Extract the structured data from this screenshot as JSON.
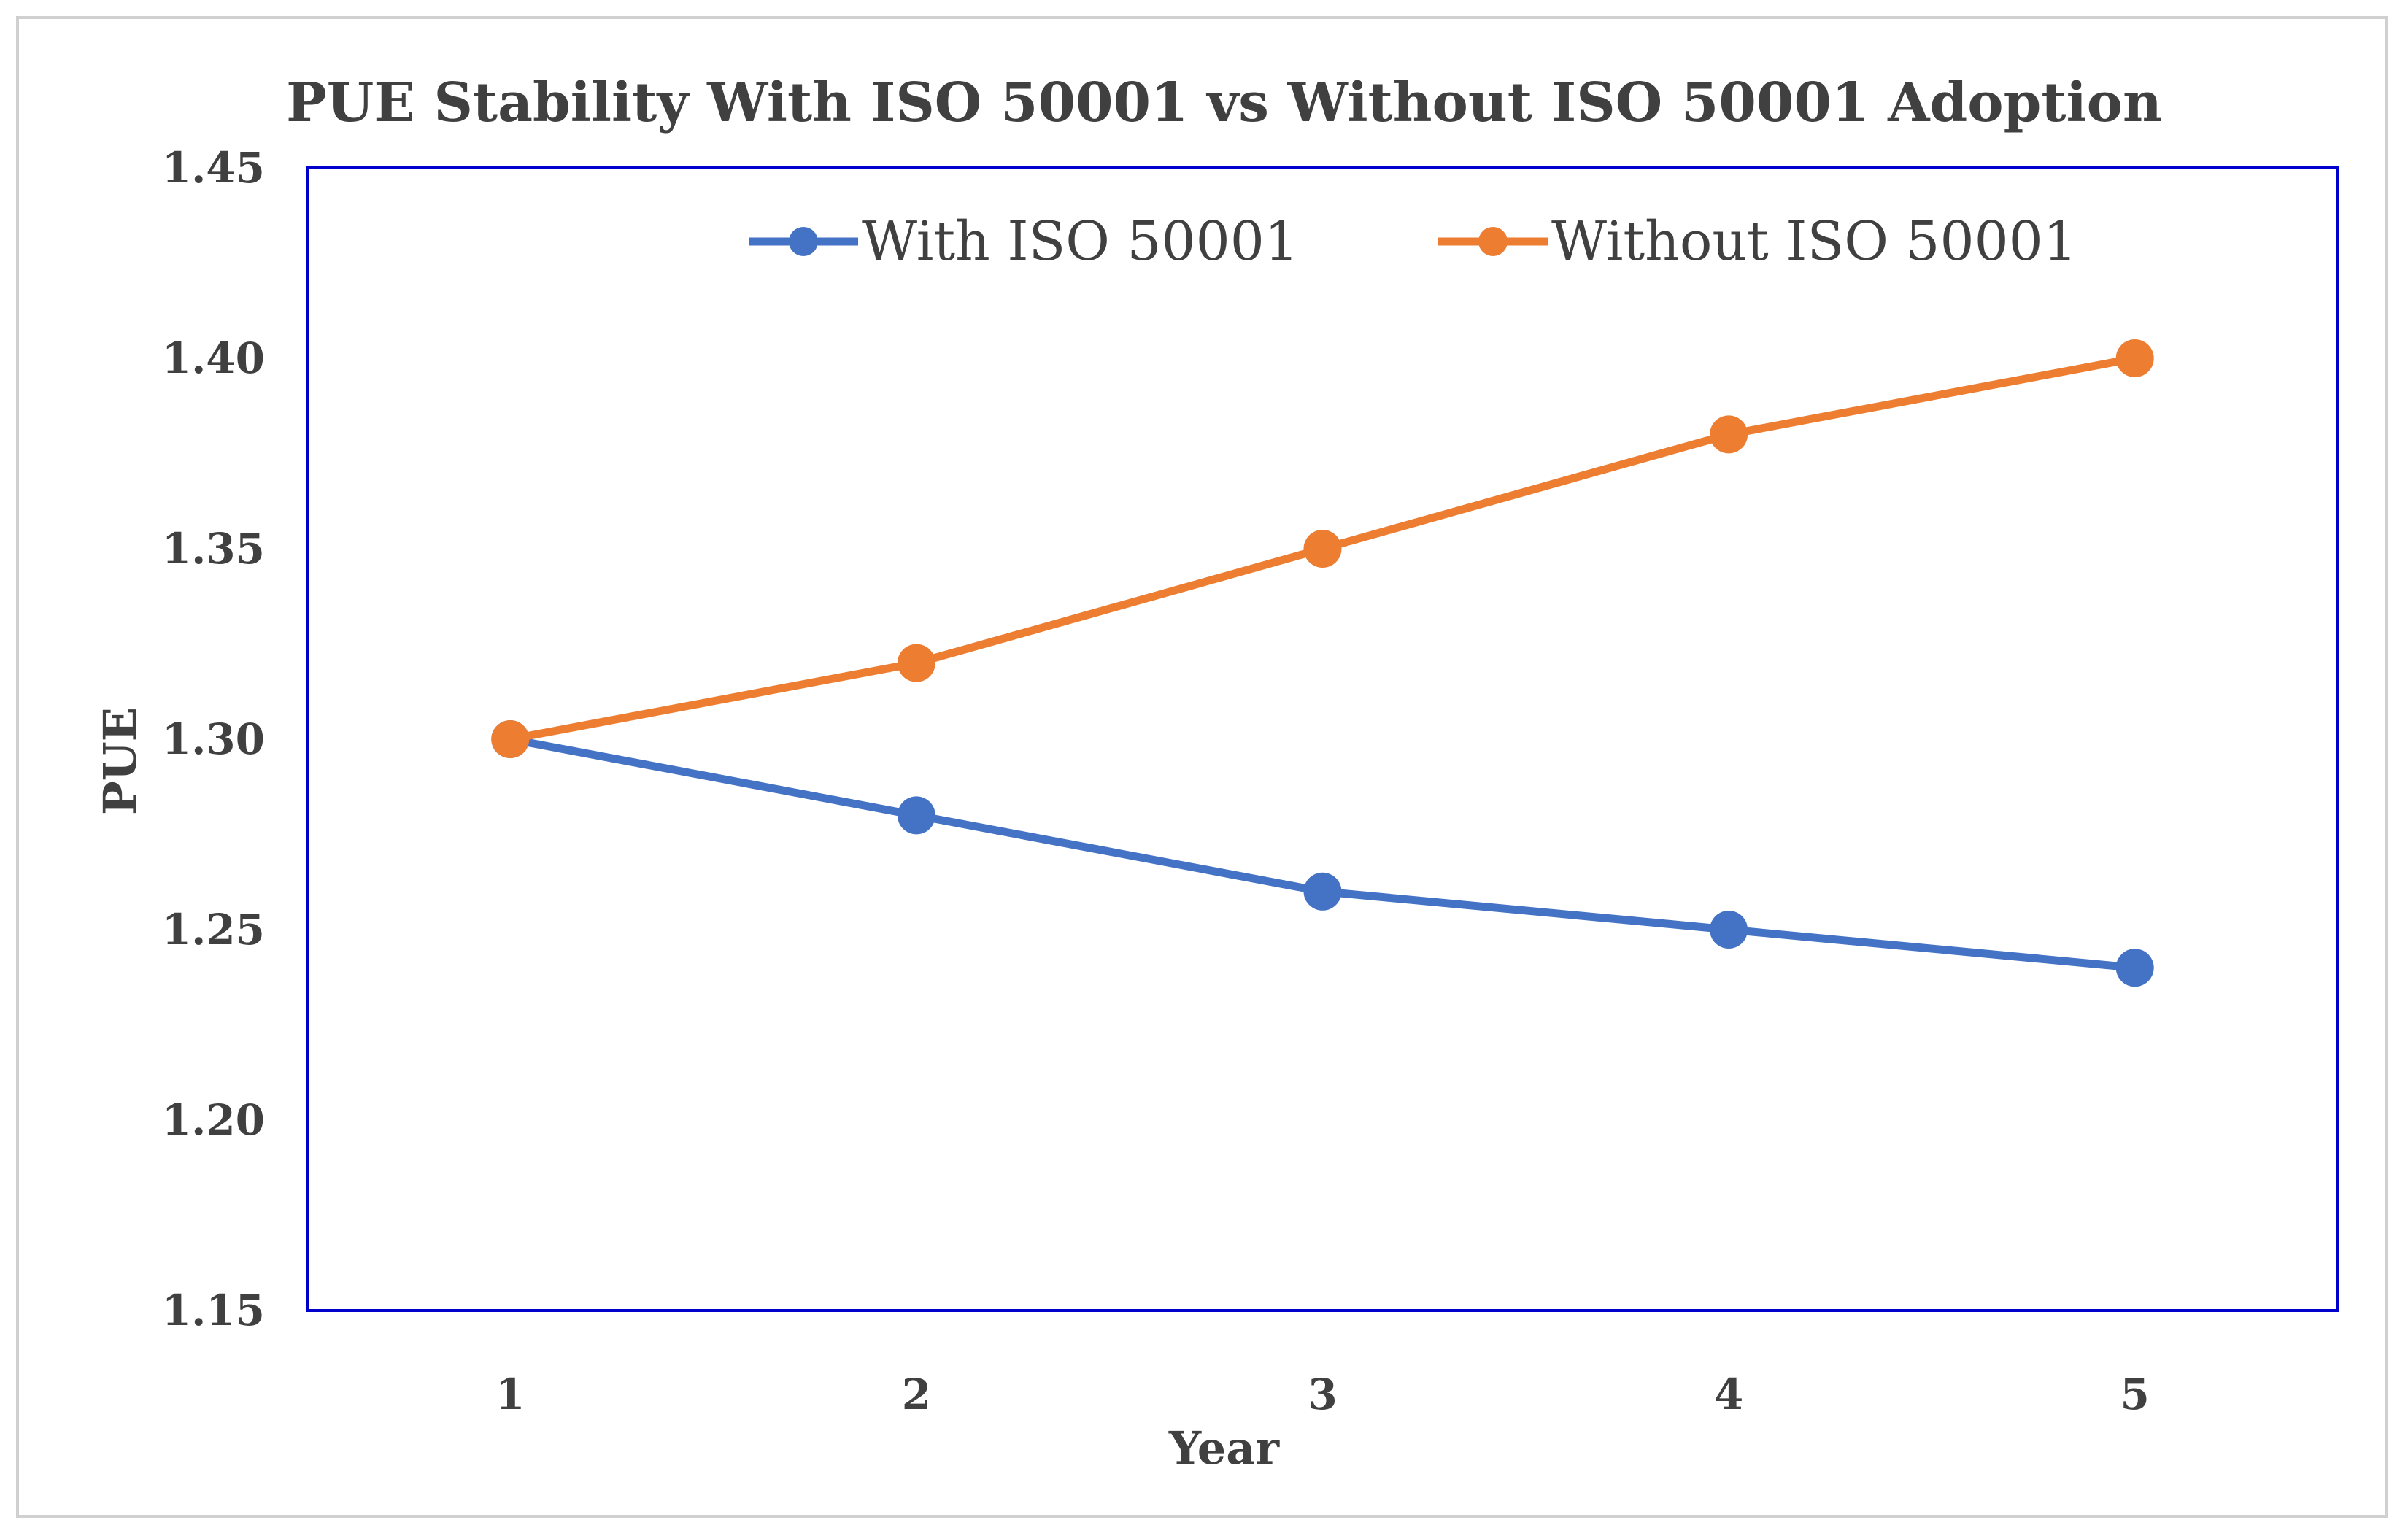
{
  "chart_data": {
    "type": "line",
    "title": "PUE Stability With ISO 50001 vs Without ISO 50001 Adoption",
    "xlabel": "Year",
    "ylabel": "PUE",
    "categories": [
      "1",
      "2",
      "3",
      "4",
      "5"
    ],
    "y_ticks": [
      "1.15",
      "1.20",
      "1.25",
      "1.30",
      "1.35",
      "1.40",
      "1.45"
    ],
    "ylim": [
      1.15,
      1.45
    ],
    "grid": false,
    "legend_position": "top",
    "series": [
      {
        "name": "With ISO 50001",
        "color": "#4472C4",
        "values": [
          1.3,
          1.28,
          1.26,
          1.25,
          1.24
        ]
      },
      {
        "name": "Without ISO 50001",
        "color": "#ED7D31",
        "values": [
          1.3,
          1.32,
          1.35,
          1.38,
          1.4
        ]
      }
    ],
    "plot_border_color": "#0000CC"
  }
}
